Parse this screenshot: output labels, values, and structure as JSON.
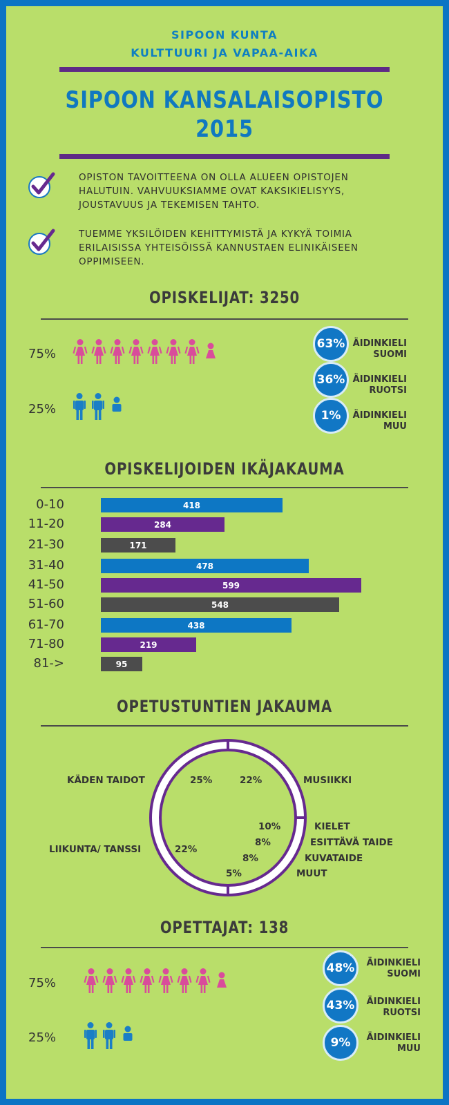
{
  "header": {
    "org_line1": "SIPOON KUNTA",
    "org_line2": "KULTTUURI JA VAPAA-AIKA",
    "title_line1": "SIPOON KANSALAISOPISTO",
    "title_line2": "2015"
  },
  "intro": [
    {
      "icon": "checkmark-icon",
      "text": "OPISTON TAVOITTEENA ON OLLA ALUEEN OPISTOJEN HALUTUIN. VAHVUUKSIAMME OVAT KAKSIKIELISYYS, JOUSTAVUUS JA TEKEMISEN TAHTO."
    },
    {
      "icon": "checkmark-icon",
      "text": "TUEMME YKSILÖIDEN KEHITTYMISTÄ JA KYKYÄ TOIMIA ERILAISISSA YHTEISÖISSÄ KANNUSTAEN ELINIKÄISEEN OPPIMISEEN."
    }
  ],
  "students": {
    "title": "OPISKELIJAT: 3250",
    "female_pct": "75%",
    "male_pct": "25%",
    "languages": [
      {
        "value": "63%",
        "label1": "ÄIDINKIELI",
        "label2": "SUOMI"
      },
      {
        "value": "36%",
        "label1": "ÄIDINKIELI",
        "label2": "RUOTSI"
      },
      {
        "value": "1%",
        "label1": "ÄIDINKIELI",
        "label2": "MUU"
      }
    ]
  },
  "teachers": {
    "title": "OPETTAJAT: 138",
    "female_pct": "75%",
    "male_pct": "25%",
    "languages": [
      {
        "value": "48%",
        "label1": "ÄIDINKIELI",
        "label2": "SUOMI"
      },
      {
        "value": "43%",
        "label1": "ÄIDINKIELI",
        "label2": "RUOTSI"
      },
      {
        "value": "9%",
        "label1": "ÄIDINKIELI",
        "label2": "MUU"
      }
    ]
  },
  "colors": {
    "background": "#b9de6a",
    "frame": "#0b74c4",
    "blue": "#0d77c4",
    "purple": "#66298f",
    "gray": "#4c4c4c",
    "pink": "#d94c9b",
    "male_blue": "#1a7ec6"
  },
  "chart_data": [
    {
      "type": "bar",
      "title": "OPISKELIJOIDEN IKÄJAKAUMA",
      "orientation": "horizontal",
      "categories": [
        "0-10",
        "11-20",
        "21-30",
        "31-40",
        "41-50",
        "51-60",
        "61-70",
        "71-80",
        "81->"
      ],
      "values": [
        418,
        284,
        171,
        478,
        599,
        548,
        438,
        219,
        95
      ],
      "xlim": [
        0,
        600
      ]
    },
    {
      "type": "pie",
      "title": "OPETUSTUNTIEN JAKAUMA",
      "style": "donut",
      "slices": [
        {
          "label": "KÄDEN TAIDOT",
          "pct": "25%",
          "value": 25
        },
        {
          "label": "MUSIIKKI",
          "pct": "22%",
          "value": 22
        },
        {
          "label": "KIELET",
          "pct": "10%",
          "value": 10
        },
        {
          "label": "ESITTÄVÄ TAIDE",
          "pct": "8%",
          "value": 8
        },
        {
          "label": "KUVATAIDE",
          "pct": "8%",
          "value": 8
        },
        {
          "label": "MUUT",
          "pct": "5%",
          "value": 5
        },
        {
          "label": "LIIKUNTA/ TANSSI",
          "pct": "22%",
          "value": 22
        }
      ]
    }
  ]
}
